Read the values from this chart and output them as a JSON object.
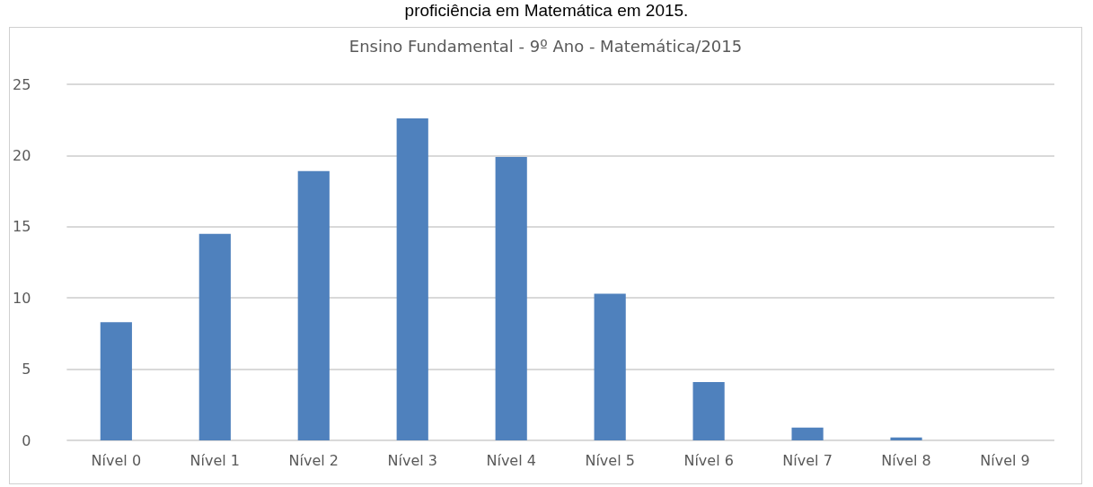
{
  "chart_data": {
    "type": "bar",
    "title": "Ensino Fundamental - 9º Ano - Matemática/2015",
    "annotations": [
      "proficiência em Matemática em 2015."
    ],
    "categories": [
      "Nível 0",
      "Nível 1",
      "Nível 2",
      "Nível 3",
      "Nível 4",
      "Nível 5",
      "Nível 6",
      "Nível 7",
      "Nível 8",
      "Nível 9"
    ],
    "values": [
      8.3,
      14.5,
      18.9,
      22.6,
      19.9,
      10.3,
      4.1,
      0.9,
      0.2,
      0
    ],
    "color": "#4f81bd",
    "ylim": [
      0,
      25
    ],
    "yticks": [
      0,
      5,
      10,
      15,
      20,
      25
    ],
    "grid": "y"
  }
}
